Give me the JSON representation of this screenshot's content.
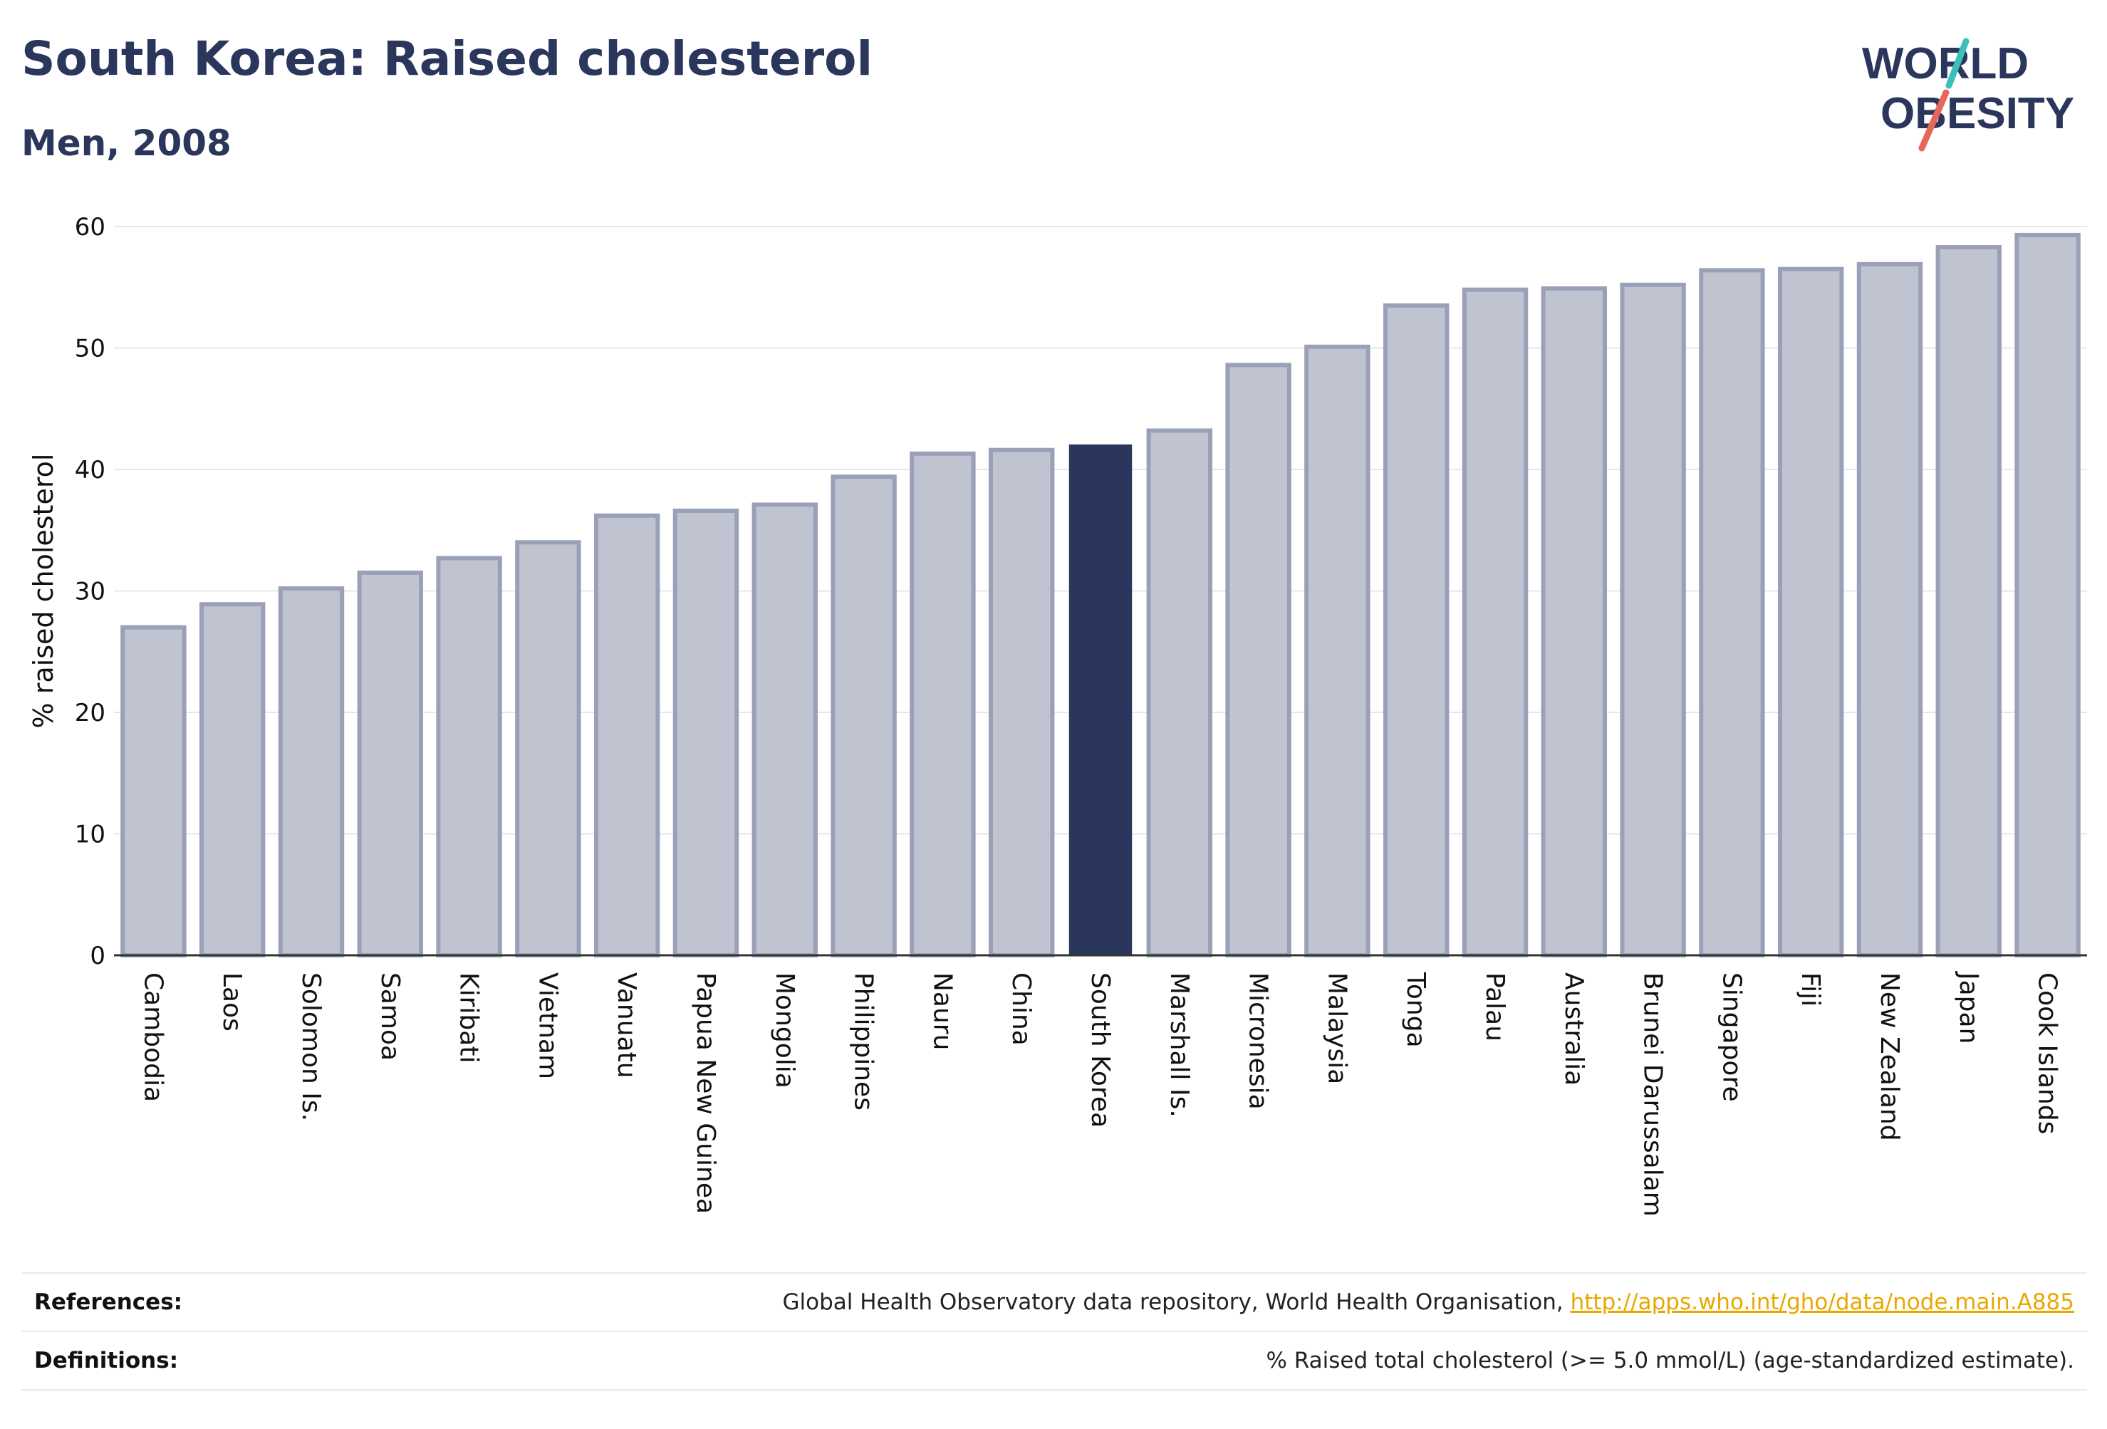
{
  "header": {
    "title": "South Korea: Raised cholesterol",
    "subtitle": "Men, 2008"
  },
  "logo": {
    "line1": "WORLD",
    "line2": "OBESITY",
    "stripe_colors": [
      "#3cbfb8",
      "#e8665a"
    ]
  },
  "colors": {
    "primary": "#2a365c",
    "bar_fill": "#c0c3d0",
    "bar_stroke": "#9aa0b8",
    "grid": "#e6e6ee",
    "link": "#e8a800"
  },
  "chart_data": {
    "type": "bar",
    "ylabel": "% raised cholesterol",
    "ylim": [
      0,
      60
    ],
    "yticks": [
      0,
      10,
      20,
      30,
      40,
      50,
      60
    ],
    "grid": true,
    "highlight": "South Korea",
    "categories": [
      "Cambodia",
      "Laos",
      "Solomon Is.",
      "Samoa",
      "Kiribati",
      "Vietnam",
      "Vanuatu",
      "Papua New Guinea",
      "Mongolia",
      "Philippines",
      "Nauru",
      "China",
      "South Korea",
      "Marshall Is.",
      "Micronesia",
      "Malaysia",
      "Tonga",
      "Palau",
      "Australia",
      "Brunei Darussalam",
      "Singapore",
      "Fiji",
      "New Zealand",
      "Japan",
      "Cook Islands"
    ],
    "values": [
      27.0,
      28.9,
      30.2,
      31.5,
      32.7,
      34.0,
      36.2,
      36.6,
      37.1,
      39.4,
      41.3,
      41.6,
      42.0,
      43.2,
      48.6,
      50.1,
      53.5,
      54.8,
      54.9,
      55.2,
      56.4,
      56.5,
      56.9,
      58.3,
      59.3
    ]
  },
  "footer": {
    "references_label": "References:",
    "references_text": "Global Health Observatory data repository, World Health Organisation, ",
    "references_link": "http://apps.who.int/gho/data/node.main.A885",
    "definitions_label": "Definitions:",
    "definitions_text": "% Raised total cholesterol (>= 5.0 mmol/L) (age-standardized estimate)."
  }
}
